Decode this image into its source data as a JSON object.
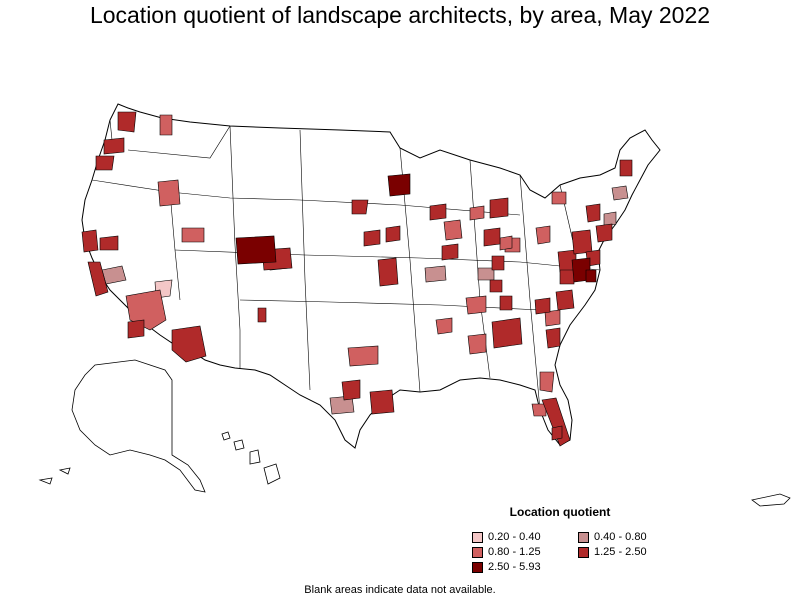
{
  "title": "Location quotient of landscape architects, by area, May 2022",
  "legend": {
    "title": "Location quotient",
    "items": [
      {
        "label": "0.20 - 0.40",
        "color": "#f4c7c7"
      },
      {
        "label": "0.40 - 0.80",
        "color": "#c89090"
      },
      {
        "label": "0.80 - 1.25",
        "color": "#d06060"
      },
      {
        "label": "1.25 - 2.50",
        "color": "#b02a2a"
      },
      {
        "label": "2.50 - 5.93",
        "color": "#7a0000"
      }
    ]
  },
  "footnote": "Blank areas indicate data not available.",
  "colors": {
    "outline": "#000000",
    "no_data": "#ffffff"
  }
}
